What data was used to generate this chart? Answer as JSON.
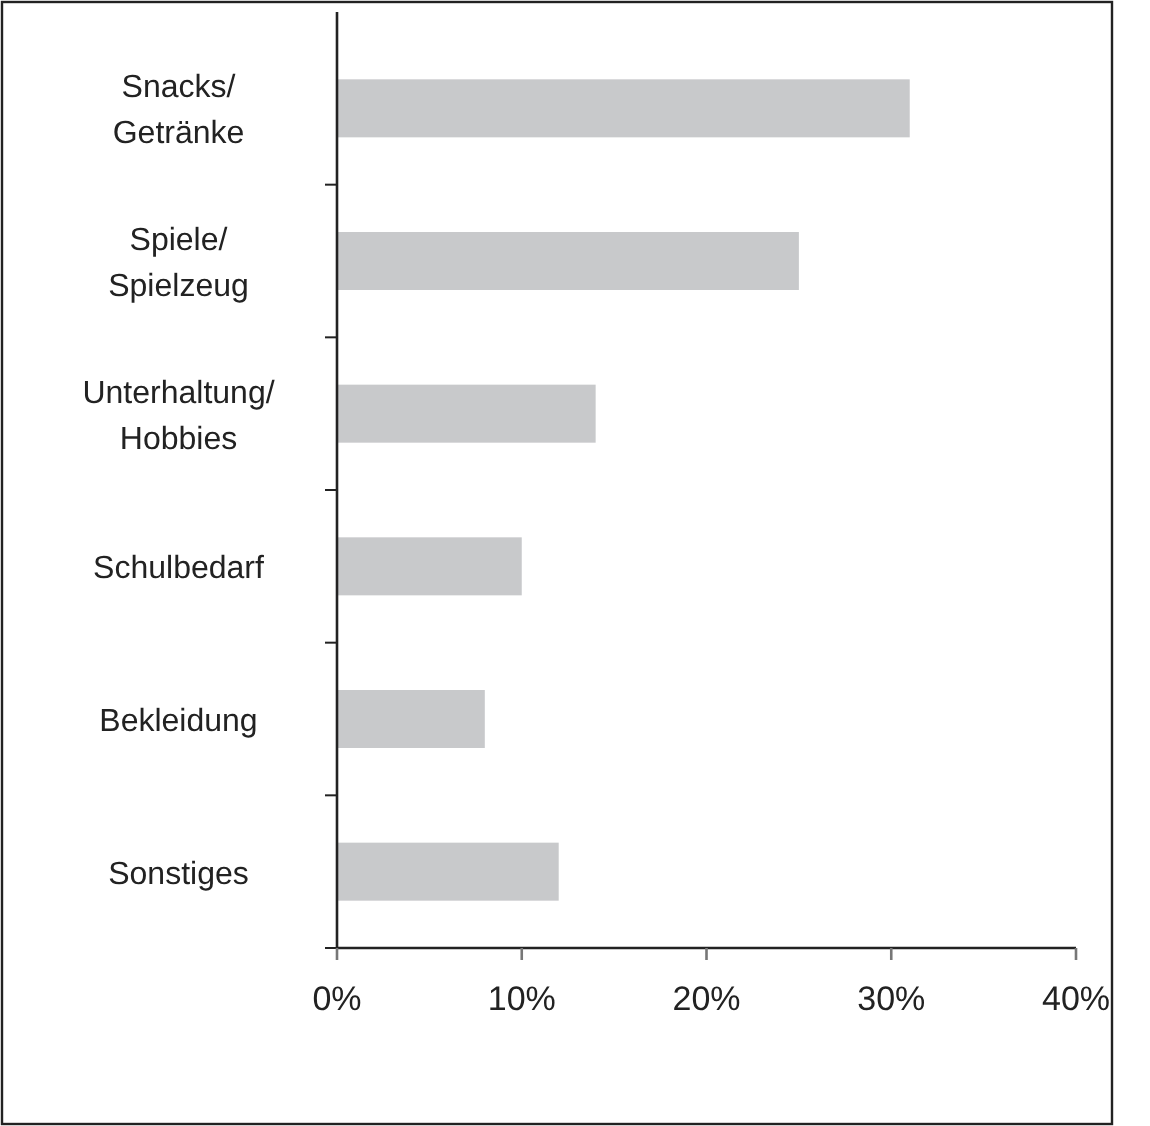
{
  "chart_data": {
    "type": "bar",
    "orientation": "horizontal",
    "categories": [
      "Snacks/\nGetränke",
      "Spiele/\nSpielzeug",
      "Unterhaltung/\nHobbies",
      "Schulbedarf",
      "Bekleidung",
      "Sonstiges"
    ],
    "values": [
      31,
      25,
      14,
      10,
      8,
      12
    ],
    "color": "#c8c9cb",
    "xlim": [
      0,
      40
    ],
    "xticks": [
      {
        "value": 0,
        "label": "0%"
      },
      {
        "value": 10,
        "label": "10%"
      },
      {
        "value": 20,
        "label": "20%"
      },
      {
        "value": 30,
        "label": "30%"
      },
      {
        "value": 40,
        "label": "40%"
      }
    ],
    "grid": false
  }
}
